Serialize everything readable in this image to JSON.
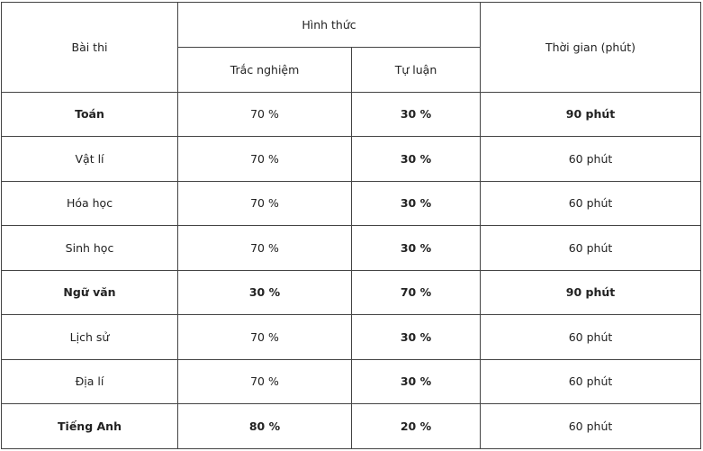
{
  "table": {
    "header": {
      "subject": "Bài thi",
      "form": "Hình thức",
      "multiple_choice": "Trắc nghiệm",
      "essay": "Tự luận",
      "time": "Thời gian (phút)"
    },
    "rows": [
      [
        "Toán",
        "70 %",
        "30 %",
        "90 phút"
      ],
      [
        "Vật lí",
        "70 %",
        "30 %",
        "60 phút"
      ],
      [
        "Hóa học",
        "70 %",
        "30 %",
        "60 phút"
      ],
      [
        "Sinh học",
        "70 %",
        "30 %",
        "60 phút"
      ],
      [
        "Ngữ văn",
        "30 %",
        "70 %",
        "90 phút"
      ],
      [
        "Lịch sử",
        "70 %",
        "30 %",
        "60 phút"
      ],
      [
        "Địa lí",
        "70 %",
        "30 %",
        "60 phút"
      ],
      [
        "Tiếng Anh",
        "80 %",
        "20 %",
        "60 phút"
      ]
    ]
  }
}
